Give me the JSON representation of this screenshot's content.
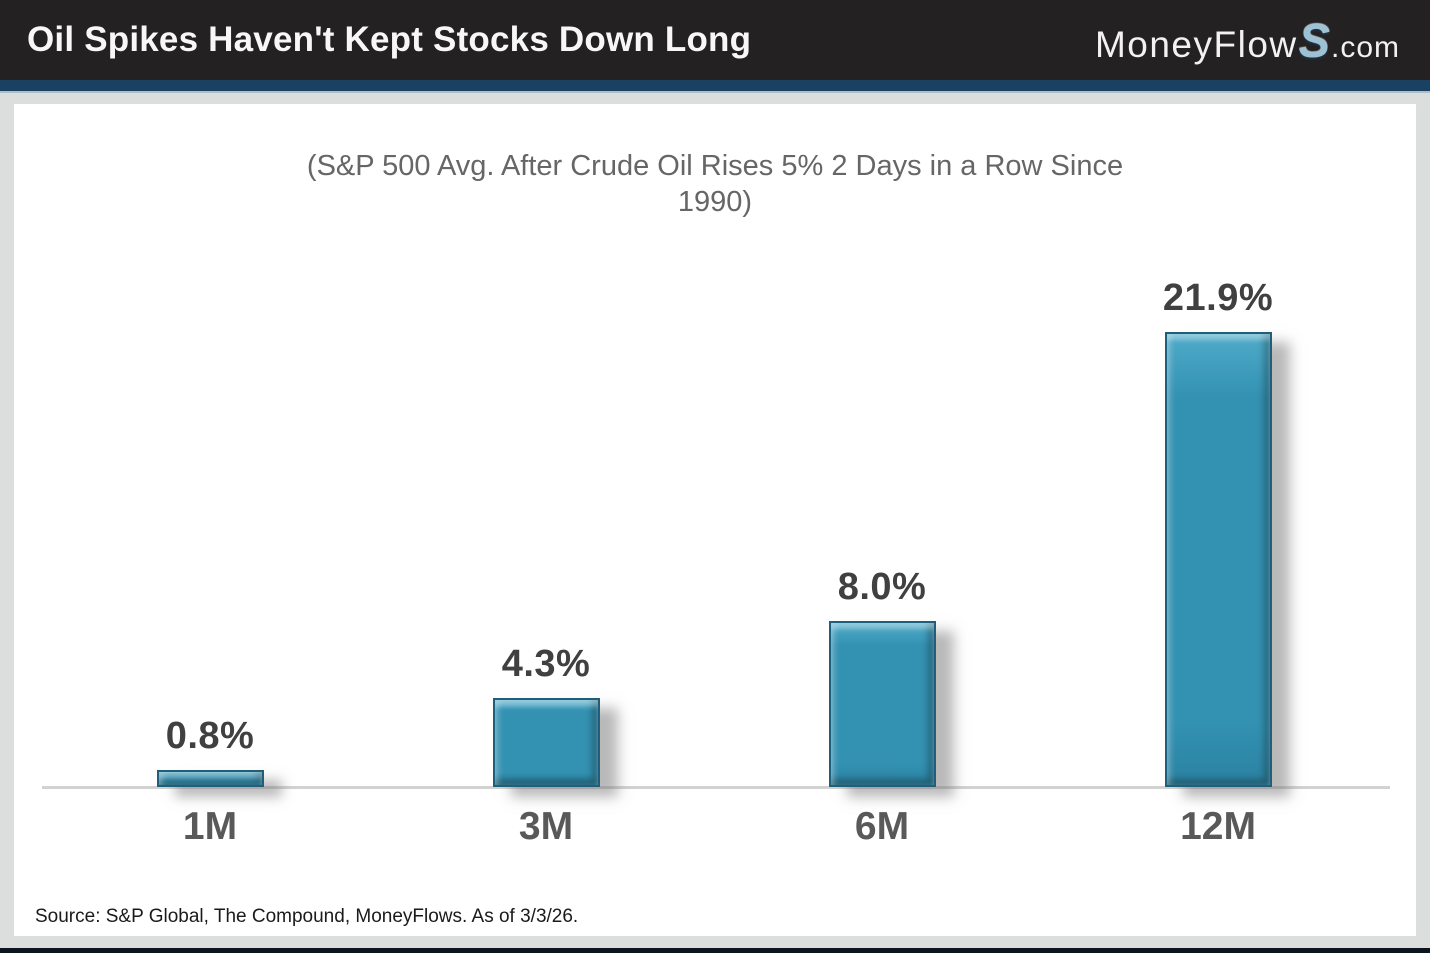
{
  "header": {
    "title": "Oil Spikes Haven't Kept Stocks Down Long",
    "logo": {
      "prefix": "MoneyFlow",
      "s": "S",
      "suffix": ".com"
    }
  },
  "chart_data": {
    "type": "bar",
    "title": "(S&P 500 Avg. After Crude Oil Rises 5% 2 Days in a Row Since 1990)",
    "categories": [
      "1M",
      "3M",
      "6M",
      "12M"
    ],
    "values": [
      0.8,
      4.3,
      8.0,
      21.9
    ],
    "value_labels": [
      "0.8%",
      "4.3%",
      "8.0%",
      "21.9%"
    ],
    "unit": "%",
    "ylim": [
      0,
      24
    ],
    "grid": false,
    "legend": "none",
    "bar_color": "#3391b2",
    "bar_border_color": "#1f5f7a",
    "value_label_color": "#404040",
    "category_label_color": "#595959"
  },
  "footer": {
    "source": "Source: S&P Global, The Compound, MoneyFlows. As of 3/3/26."
  },
  "colors": {
    "header_bg": "#242122",
    "accent_strip": "#1a4161",
    "page_margin": "#dcdddd",
    "card_bg": "#ffffff",
    "axis_line": "#d2d2d2",
    "bottom_bar": "#0c141d"
  }
}
